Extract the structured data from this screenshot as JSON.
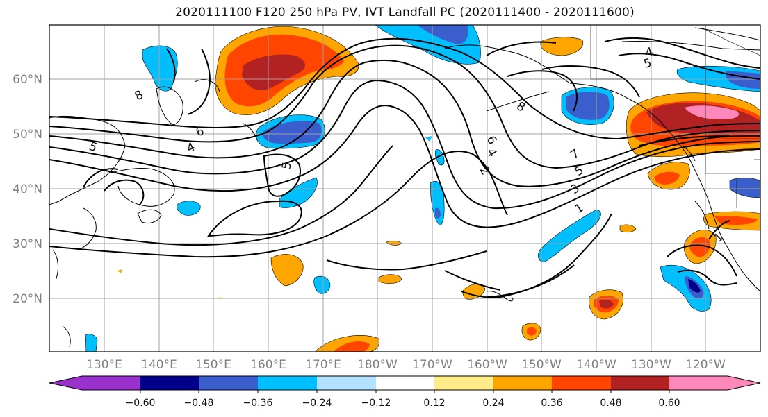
{
  "title": "2020111100 F120 250 hPa PV, IVT Landfall PC (2020111400 - 2020111600)",
  "map": {
    "lat_ticks": [
      "60°N",
      "50°N",
      "40°N",
      "30°N",
      "20°N"
    ],
    "lon_ticks": [
      "130°E",
      "140°E",
      "150°E",
      "160°E",
      "170°E",
      "180°W",
      "170°W",
      "160°W",
      "150°W",
      "140°W",
      "130°W",
      "120°W"
    ],
    "contour_labels": [
      "8",
      "6",
      "4",
      "5",
      "5",
      "8",
      "6",
      "4",
      "2",
      "7",
      "5",
      "3",
      "1",
      "4",
      "5",
      "1"
    ],
    "contour_color": "#000000",
    "coastline_color": "#000000",
    "gridline_color": "#a0a0a0"
  },
  "colorbar": {
    "ticks": [
      "−0.60",
      "−0.48",
      "−0.36",
      "−0.24",
      "−0.12",
      "0.12",
      "0.24",
      "0.36",
      "0.48",
      "0.60"
    ],
    "colors": [
      "#9932cc",
      "#00008b",
      "#3a5fcd",
      "#00bfff",
      "#b2e2ff",
      "#ffffff",
      "#ffeb8a",
      "#ffa500",
      "#ff4500",
      "#b22222",
      "#ff88bb"
    ]
  }
}
